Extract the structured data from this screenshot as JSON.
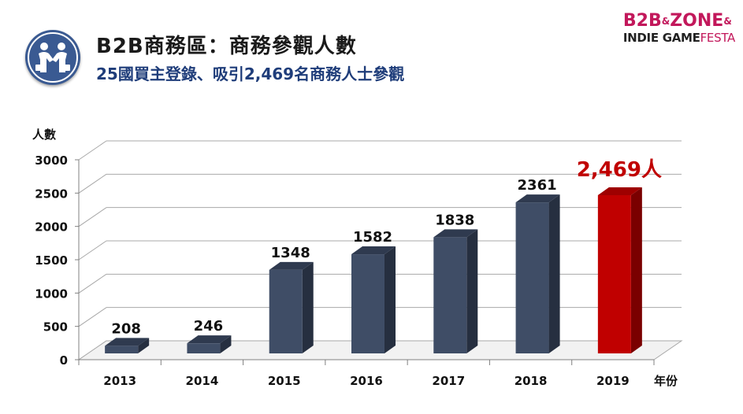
{
  "header": {
    "title": "B2B商務區：商務參觀人數",
    "subtitle": "25國買主登錄、吸引2,469名商務人士參觀",
    "icon": "business-handshake-icon",
    "icon_color": "#3a5a92"
  },
  "logo": {
    "line1_a": "B2B",
    "line1_b": "ZONE",
    "line1_amp": "&",
    "line2_a": "INDIE GAME",
    "line2_b": "FESTA",
    "color": "#c2185b"
  },
  "chart_data": {
    "type": "bar",
    "ylabel": "人數",
    "xlabel": "年份",
    "ylim": [
      0,
      3000
    ],
    "yticks": [
      0,
      500,
      1000,
      1500,
      2000,
      2500,
      3000
    ],
    "grid": true,
    "categories": [
      "2013",
      "2014",
      "2015",
      "2016",
      "2017",
      "2018",
      "2019"
    ],
    "values": [
      208,
      246,
      1348,
      1582,
      1838,
      2361,
      2469
    ],
    "labels": [
      "208",
      "246",
      "1348",
      "1582",
      "1838",
      "2361",
      "2,469人"
    ],
    "bar_color": "#3f4d66",
    "highlight_color": "#c00000",
    "highlight_index": 6
  }
}
